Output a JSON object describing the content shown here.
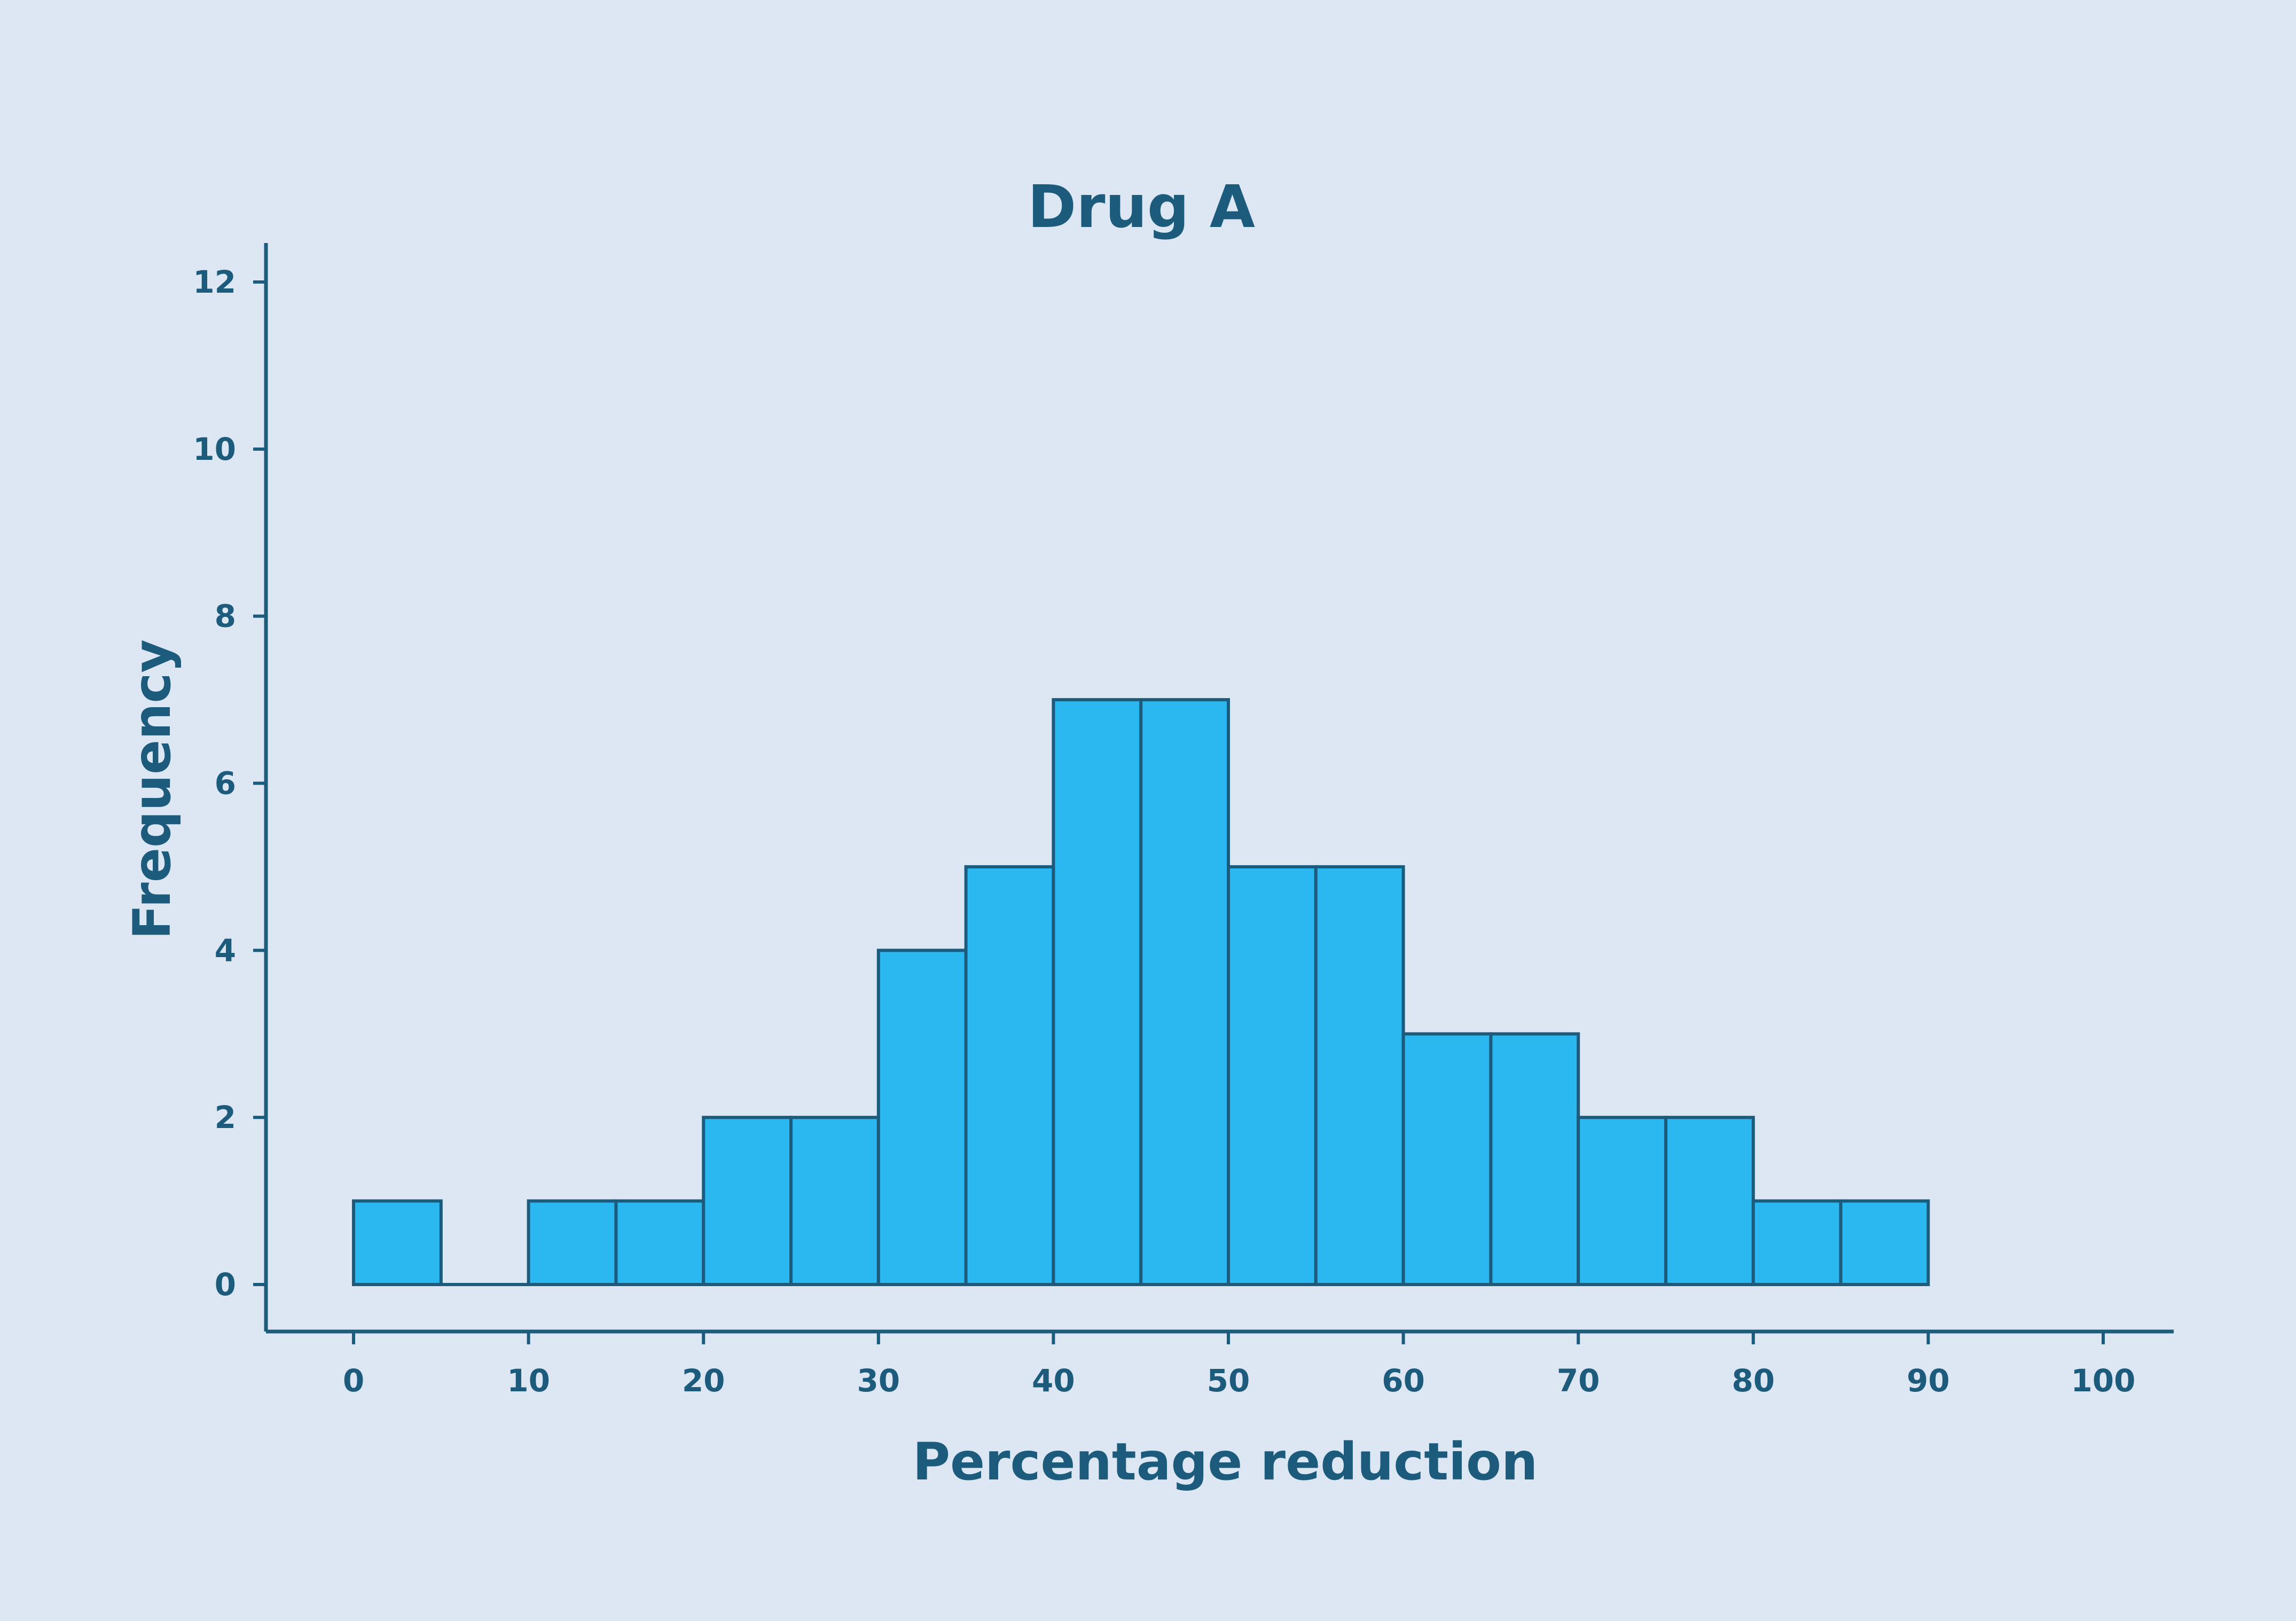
{
  "colors": {
    "background": "#dce7f3",
    "bar_fill": "#2bb8f0",
    "ink": "#1d5b7d"
  },
  "chart_data": {
    "type": "bar",
    "title": "Drug A",
    "xlabel": "Percentage reduction",
    "ylabel": "Frequency",
    "bins": [
      {
        "start": 0,
        "end": 5,
        "count": 1
      },
      {
        "start": 5,
        "end": 10,
        "count": 0
      },
      {
        "start": 10,
        "end": 15,
        "count": 1
      },
      {
        "start": 15,
        "end": 20,
        "count": 1
      },
      {
        "start": 20,
        "end": 25,
        "count": 2
      },
      {
        "start": 25,
        "end": 30,
        "count": 2
      },
      {
        "start": 30,
        "end": 35,
        "count": 4
      },
      {
        "start": 35,
        "end": 40,
        "count": 5
      },
      {
        "start": 40,
        "end": 45,
        "count": 7
      },
      {
        "start": 45,
        "end": 50,
        "count": 7
      },
      {
        "start": 50,
        "end": 55,
        "count": 5
      },
      {
        "start": 55,
        "end": 60,
        "count": 5
      },
      {
        "start": 60,
        "end": 65,
        "count": 3
      },
      {
        "start": 65,
        "end": 70,
        "count": 3
      },
      {
        "start": 70,
        "end": 75,
        "count": 2
      },
      {
        "start": 75,
        "end": 80,
        "count": 2
      },
      {
        "start": 80,
        "end": 85,
        "count": 1
      },
      {
        "start": 85,
        "end": 90,
        "count": 1
      }
    ],
    "xticks": [
      "0",
      "10",
      "20",
      "30",
      "40",
      "50",
      "60",
      "70",
      "80",
      "90",
      "100"
    ],
    "yticks": [
      "0",
      "2",
      "4",
      "6",
      "8",
      "10",
      "12"
    ],
    "xlim": [
      -5,
      104
    ],
    "ylim": [
      -0.55,
      12.5
    ],
    "grid": false
  }
}
